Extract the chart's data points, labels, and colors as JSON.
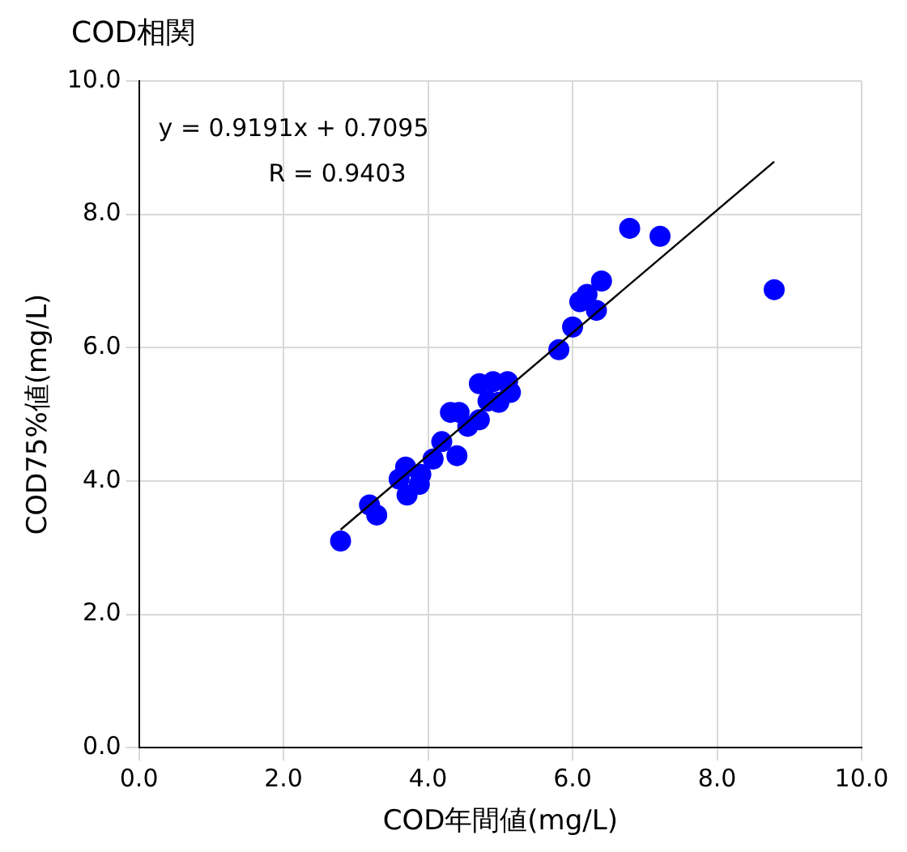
{
  "chart_data": {
    "type": "scatter",
    "title": "COD相関",
    "xlabel": "COD年間値(mg/L)",
    "ylabel": "COD75%値(mg/L)",
    "annotations": [
      "y = 0.9191x + 0.7095",
      "R = 0.9403"
    ],
    "series": [
      {
        "color": "#0000ff",
        "marker": "circle",
        "x": [
          2.79,
          3.19,
          3.29,
          3.6,
          3.71,
          3.69,
          3.88,
          3.9,
          4.07,
          4.19,
          4.4,
          4.31,
          4.43,
          4.55,
          4.71,
          4.71,
          4.9,
          4.83,
          5.1,
          5.14,
          4.98,
          5.81,
          6.0,
          6.1,
          6.2,
          6.33,
          6.4,
          6.79,
          7.21,
          8.79
        ],
        "values": [
          3.1,
          3.64,
          3.49,
          4.03,
          3.79,
          4.21,
          3.95,
          4.1,
          4.33,
          4.59,
          4.38,
          5.03,
          5.03,
          4.82,
          4.92,
          5.46,
          5.49,
          5.2,
          5.49,
          5.33,
          5.18,
          5.97,
          6.31,
          6.69,
          6.8,
          6.56,
          7.0,
          7.79,
          7.67,
          6.87
        ]
      },
      {
        "type": "line",
        "color": "#000000",
        "marker": "none",
        "x": [
          2.79,
          8.79
        ],
        "values": [
          3.27,
          8.79
        ]
      }
    ],
    "xlim": [
      0,
      10
    ],
    "ylim": [
      0,
      10
    ],
    "xticks": [
      {
        "value": 0,
        "label": "0.0"
      },
      {
        "value": 2,
        "label": "2.0"
      },
      {
        "value": 4,
        "label": "4.0"
      },
      {
        "value": 6,
        "label": "6.0"
      },
      {
        "value": 8,
        "label": "8.0"
      },
      {
        "value": 10,
        "label": "10.0"
      }
    ],
    "yticks": [
      {
        "value": 0,
        "label": "0.0"
      },
      {
        "value": 2,
        "label": "2.0"
      },
      {
        "value": 4,
        "label": "4.0"
      },
      {
        "value": 6,
        "label": "6.0"
      },
      {
        "value": 8,
        "label": "8.0"
      },
      {
        "value": 10,
        "label": "10.0"
      }
    ],
    "grid": true,
    "legend": false
  }
}
